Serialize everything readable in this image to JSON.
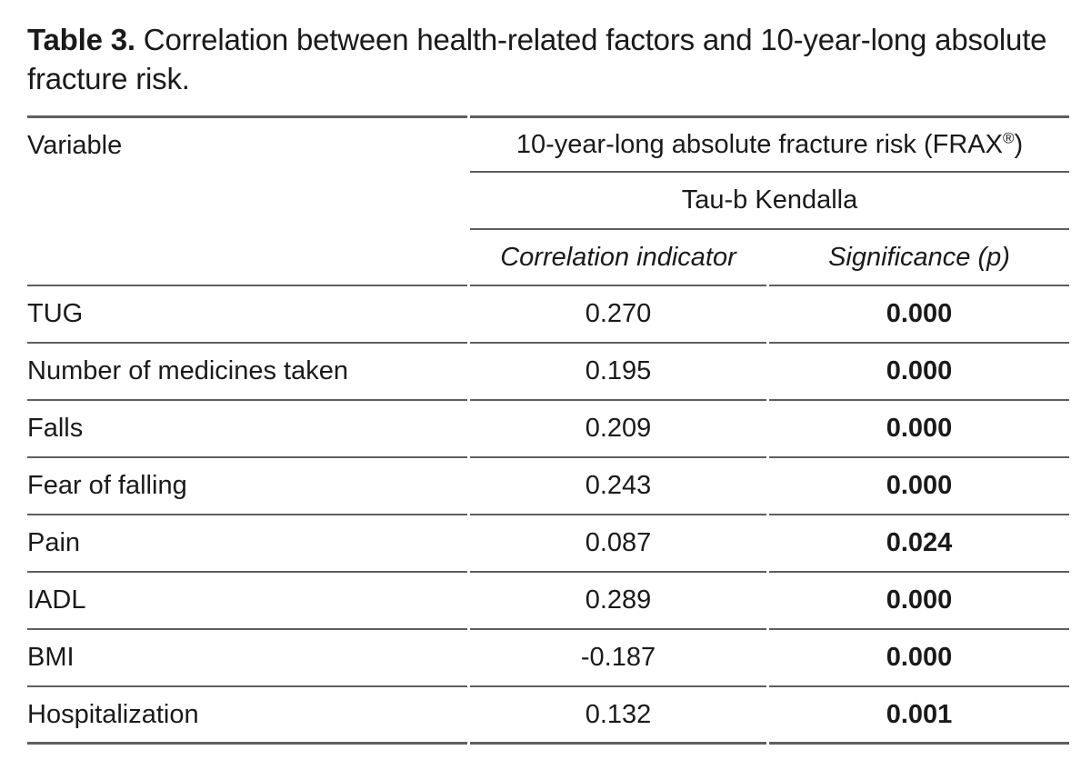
{
  "title": {
    "bold": "Table 3.",
    "rest": " Correlation between health-related factors and 10-year-long absolute fracture risk."
  },
  "header": {
    "variable": "Variable",
    "frax_prefix": "10-year-long absolute fracture risk (FRAX",
    "frax_reg_mark": "®",
    "frax_suffix": ")",
    "method": "Tau-b Kendalla",
    "col_correlation": "Correlation indicator",
    "col_significance": "Significance (p)"
  },
  "rows": [
    {
      "variable": "TUG",
      "correlation": "0.270",
      "significance": "0.000"
    },
    {
      "variable": "Number of medicines taken",
      "correlation": "0.195",
      "significance": "0.000"
    },
    {
      "variable": "Falls",
      "correlation": "0.209",
      "significance": "0.000"
    },
    {
      "variable": "Fear of falling",
      "correlation": "0.243",
      "significance": "0.000"
    },
    {
      "variable": "Pain",
      "correlation": "0.087",
      "significance": "0.024"
    },
    {
      "variable": "IADL",
      "correlation": "0.289",
      "significance": "0.000"
    },
    {
      "variable": "BMI",
      "correlation": "-0.187",
      "significance": "0.000"
    },
    {
      "variable": "Hospitalization",
      "correlation": "0.132",
      "significance": "0.001"
    }
  ],
  "colors": {
    "text": "#1a1a1a",
    "rule": "#5e5e5e",
    "background": "#ffffff"
  }
}
